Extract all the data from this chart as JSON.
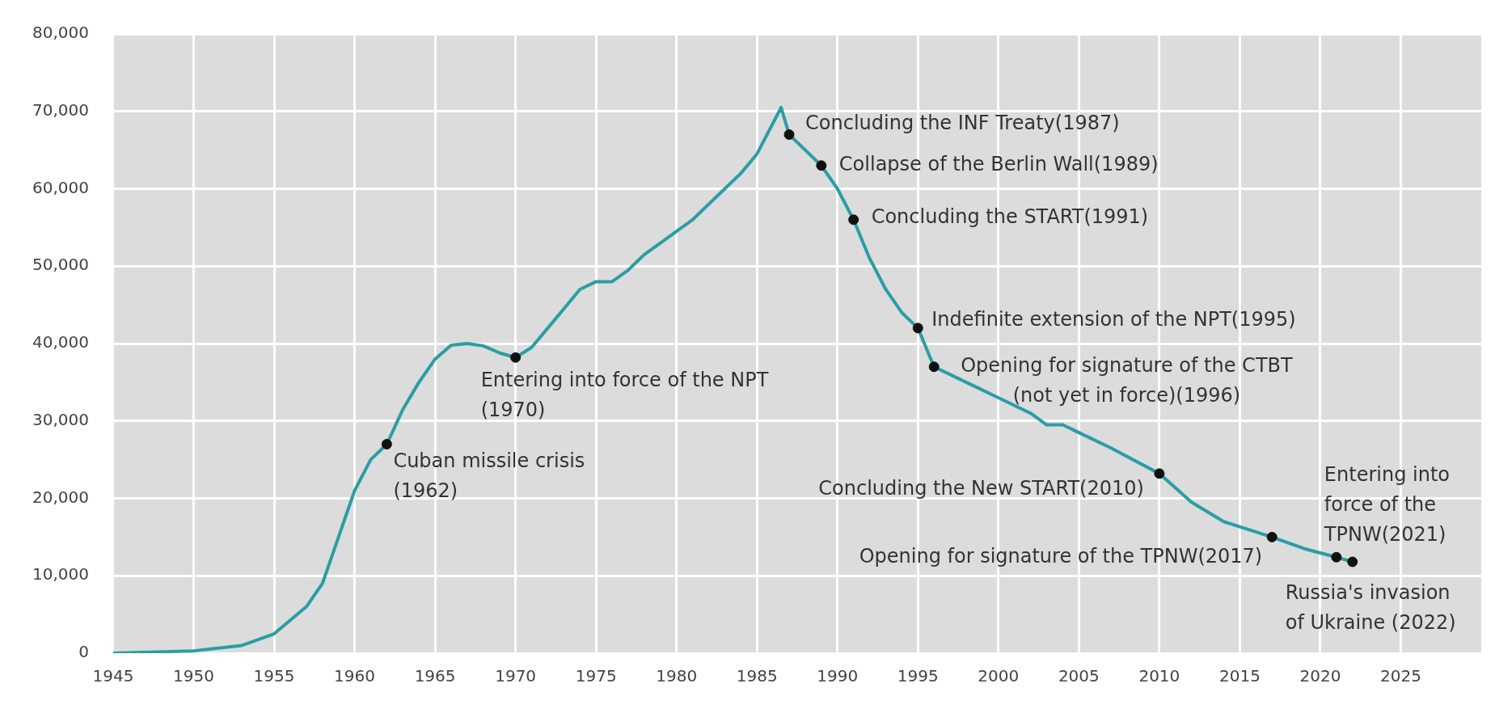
{
  "chart_data": {
    "type": "line",
    "xlim": [
      1945,
      2030
    ],
    "xticks": [
      1945,
      1950,
      1955,
      1960,
      1965,
      1970,
      1975,
      1980,
      1985,
      1990,
      1995,
      2000,
      2005,
      2010,
      2015,
      2020,
      2025
    ],
    "ylim": [
      0,
      80000
    ],
    "yticks": [
      0,
      {
        "value": 10000,
        "label": "10,000"
      },
      {
        "value": 20000,
        "label": "20,000"
      },
      {
        "value": 30000,
        "label": "30,000"
      },
      {
        "value": 40000,
        "label": "40,000"
      },
      {
        "value": 50000,
        "label": "50,000"
      },
      {
        "value": 60000,
        "label": "60,000"
      },
      {
        "value": 70000,
        "label": "70,000"
      },
      {
        "value": 80000,
        "label": "80,000"
      }
    ],
    "grid": true,
    "legend": false,
    "series": [
      {
        "type": "line",
        "color": "#2a9ea3",
        "marker": "none",
        "line_style": "solid",
        "x": [
          1945,
          1950,
          1953,
          1955,
          1957,
          1958,
          1959,
          1960,
          1961,
          1962,
          1963,
          1964,
          1965,
          1966,
          1967,
          1968,
          1969,
          1970,
          1971,
          1972,
          1973,
          1974,
          1975,
          1976,
          1977,
          1978,
          1979,
          1980,
          1981,
          1982,
          1983,
          1984,
          1985,
          1986.5,
          1987,
          1988,
          1989,
          1990,
          1991,
          1992,
          1993,
          1994,
          1995,
          1996,
          1998,
          2000,
          2002,
          2003,
          2004,
          2005,
          2007,
          2010,
          2012,
          2014,
          2017,
          2019,
          2021,
          2022
        ],
        "values": [
          0,
          300,
          1000,
          2500,
          6000,
          9000,
          15000,
          21000,
          25000,
          27000,
          31500,
          35000,
          38000,
          39800,
          40000,
          39700,
          38800,
          38200,
          39500,
          42000,
          44500,
          47000,
          48000,
          48000,
          49500,
          51500,
          53000,
          54500,
          56000,
          58000,
          60000,
          62000,
          64500,
          70500,
          67000,
          65000,
          63000,
          60000,
          56000,
          51000,
          47000,
          44000,
          42000,
          37000,
          35000,
          33000,
          31000,
          29500,
          29500,
          28500,
          26500,
          23200,
          19500,
          17000,
          15000,
          13500,
          12400,
          11800
        ]
      },
      {
        "type": "scatter",
        "color": "#111111",
        "marker": "circle",
        "x": [
          1962,
          1970,
          1987,
          1989,
          1991,
          1995,
          1996,
          2010,
          2017,
          2021,
          2022
        ],
        "values": [
          27000,
          38200,
          67000,
          63000,
          56000,
          42000,
          37000,
          23200,
          15000,
          12400,
          11800
        ]
      }
    ],
    "annotations": [
      {
        "text": "Cuban missile crisis\n(1962)",
        "x": 1962,
        "y": 27000
      },
      {
        "text": "Entering into force of the NPT\n(1970)",
        "x": 1970,
        "y": 38200
      },
      {
        "text": "Concluding the INF Treaty(1987)",
        "x": 1987,
        "y": 67000
      },
      {
        "text": "Collapse of the Berlin Wall(1989)",
        "x": 1989,
        "y": 63000
      },
      {
        "text": "Concluding the START(1991)",
        "x": 1991,
        "y": 56000
      },
      {
        "text": "Indefinite extension of the NPT(1995)",
        "x": 1995,
        "y": 42000
      },
      {
        "text": "Opening for signature of the CTBT\n(not yet in force)(1996)",
        "x": 1996,
        "y": 37000
      },
      {
        "text": "Concluding the New START(2010)",
        "x": 2010,
        "y": 23200
      },
      {
        "text": "Opening for signature of the TPNW(2017)",
        "x": 2017,
        "y": 15000
      },
      {
        "text": "Entering into\nforce of the\nTPNW(2021)",
        "x": 2021,
        "y": 12400
      },
      {
        "text": "Russia's invasion\nof Ukraine (2022)",
        "x": 2022,
        "y": 11800
      }
    ]
  }
}
